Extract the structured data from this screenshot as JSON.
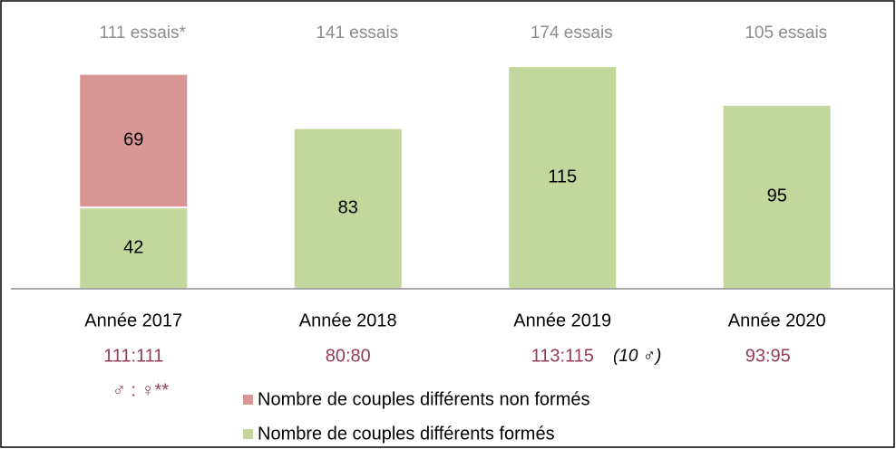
{
  "chart_data": {
    "type": "bar",
    "stacked": true,
    "categories": [
      "Année 2017",
      "Année 2018",
      "Année 2019",
      "Année 2020"
    ],
    "series": [
      {
        "name": "Nombre de couples différents formés",
        "color": "#c3d69b",
        "values": [
          42,
          83,
          115,
          95
        ]
      },
      {
        "name": "Nombre de couples différents non formés",
        "color": "#d99594",
        "values": [
          69,
          null,
          null,
          null
        ]
      }
    ],
    "ylim": [
      0,
      130
    ],
    "trials": [
      "111 essais*",
      "141 essais",
      "174 essais",
      "105 essais"
    ],
    "ratios": [
      "111:111",
      "80:80",
      "113:115",
      "93:95"
    ],
    "ratio_note": "(10 ♂)",
    "sex_ratio": "♂ : ♀**"
  }
}
